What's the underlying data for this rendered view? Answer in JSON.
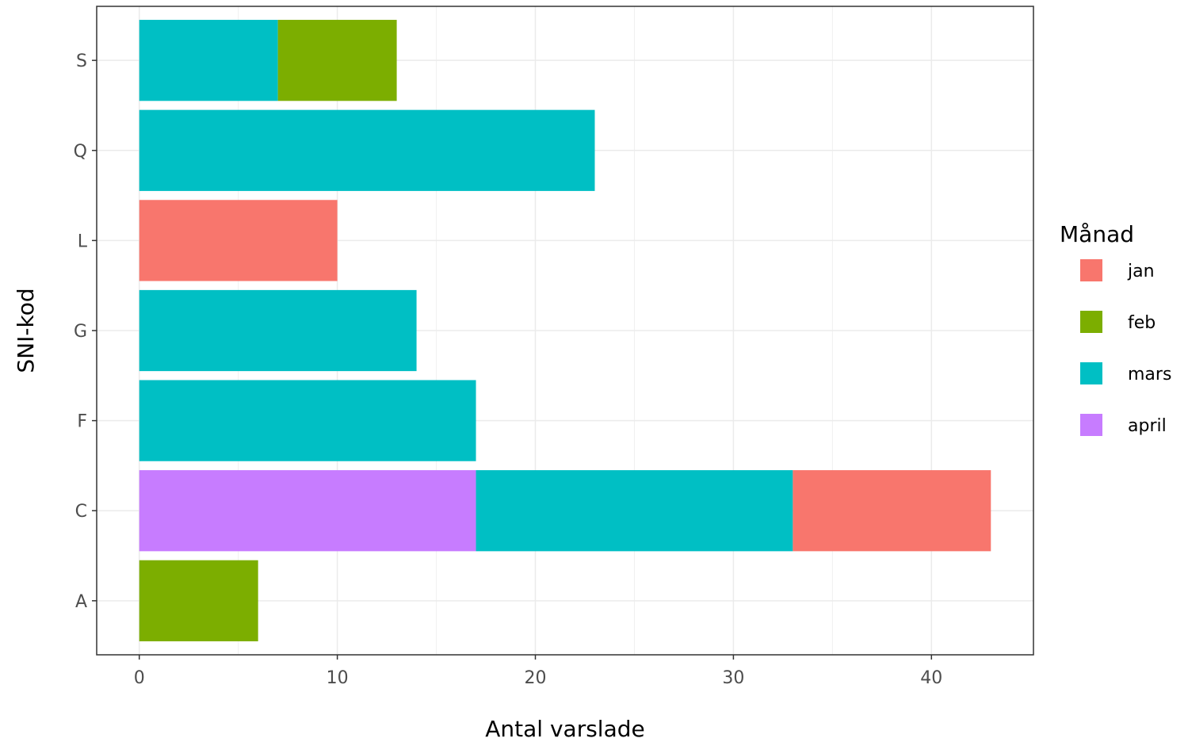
{
  "chart_data": {
    "type": "bar",
    "orientation": "horizontal",
    "stacked": true,
    "categories": [
      "A",
      "C",
      "F",
      "G",
      "L",
      "Q",
      "S"
    ],
    "series": [
      {
        "name": "jan",
        "color": "#F8766D",
        "values": [
          0,
          10,
          0,
          0,
          10,
          0,
          0
        ]
      },
      {
        "name": "feb",
        "color": "#7CAE00",
        "values": [
          6,
          0,
          0,
          0,
          0,
          0,
          6
        ]
      },
      {
        "name": "mars",
        "color": "#00BFC4",
        "values": [
          0,
          16,
          17,
          14,
          0,
          23,
          7
        ]
      },
      {
        "name": "april",
        "color": "#C77CFF",
        "values": [
          0,
          17,
          0,
          0,
          0,
          0,
          0
        ]
      }
    ],
    "stack_order": [
      "april",
      "mars",
      "feb",
      "jan"
    ],
    "xlabel": "Antal varslade",
    "ylabel": "SNI-kod",
    "xlim": [
      -2.15,
      45.15
    ],
    "xticks": [
      0,
      10,
      20,
      30,
      40
    ],
    "grid": true,
    "legend": {
      "title": "Månad",
      "placement": "right",
      "entries": [
        "jan",
        "feb",
        "mars",
        "april"
      ]
    }
  }
}
